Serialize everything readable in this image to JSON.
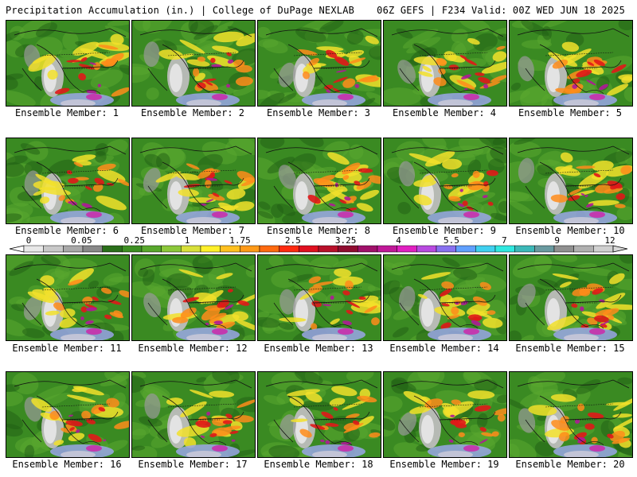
{
  "header": {
    "left_title": "Precipitation Accumulation (in.) | College of DuPage NEXLAB",
    "right_title": "06Z GEFS | F234 Valid: 00Z WED JUN 18 2025"
  },
  "colorbar": {
    "tick_labels": [
      "0",
      "0.05",
      "0.25",
      "1",
      "1.75",
      "2.5",
      "3.25",
      "4",
      "5.5",
      "7",
      "9",
      "12"
    ],
    "colors": [
      "#e8e8e8",
      "#c8c8c8",
      "#a8a8a8",
      "#888888",
      "#2a6f1a",
      "#3d8f22",
      "#58a82c",
      "#8cc83a",
      "#d8e03a",
      "#fff02a",
      "#ffc020",
      "#ff9a18",
      "#ff6a10",
      "#ff2a10",
      "#e01020",
      "#b8102a",
      "#900c30",
      "#a0106a",
      "#c01898",
      "#e020c0",
      "#b84ae0",
      "#8870f0",
      "#60a0ff",
      "#40d0f0",
      "#30e8e0",
      "#3cb8b8",
      "#6a9aa0",
      "#909090",
      "#b0b0b0",
      "#d0d0d0"
    ]
  },
  "members": [
    {
      "label": "Ensemble Member: 1"
    },
    {
      "label": "Ensemble Member: 2"
    },
    {
      "label": "Ensemble Member: 3"
    },
    {
      "label": "Ensemble Member: 4"
    },
    {
      "label": "Ensemble Member: 5"
    },
    {
      "label": "Ensemble Member: 6"
    },
    {
      "label": "Ensemble Member: 7"
    },
    {
      "label": "Ensemble Member: 8"
    },
    {
      "label": "Ensemble Member: 9"
    },
    {
      "label": "Ensemble Member: 10"
    },
    {
      "label": "Ensemble Member: 11"
    },
    {
      "label": "Ensemble Member: 12"
    },
    {
      "label": "Ensemble Member: 13"
    },
    {
      "label": "Ensemble Member: 14"
    },
    {
      "label": "Ensemble Member: 15"
    },
    {
      "label": "Ensemble Member: 16"
    },
    {
      "label": "Ensemble Member: 17"
    },
    {
      "label": "Ensemble Member: 18"
    },
    {
      "label": "Ensemble Member: 19"
    },
    {
      "label": "Ensemble Member: 20"
    }
  ]
}
